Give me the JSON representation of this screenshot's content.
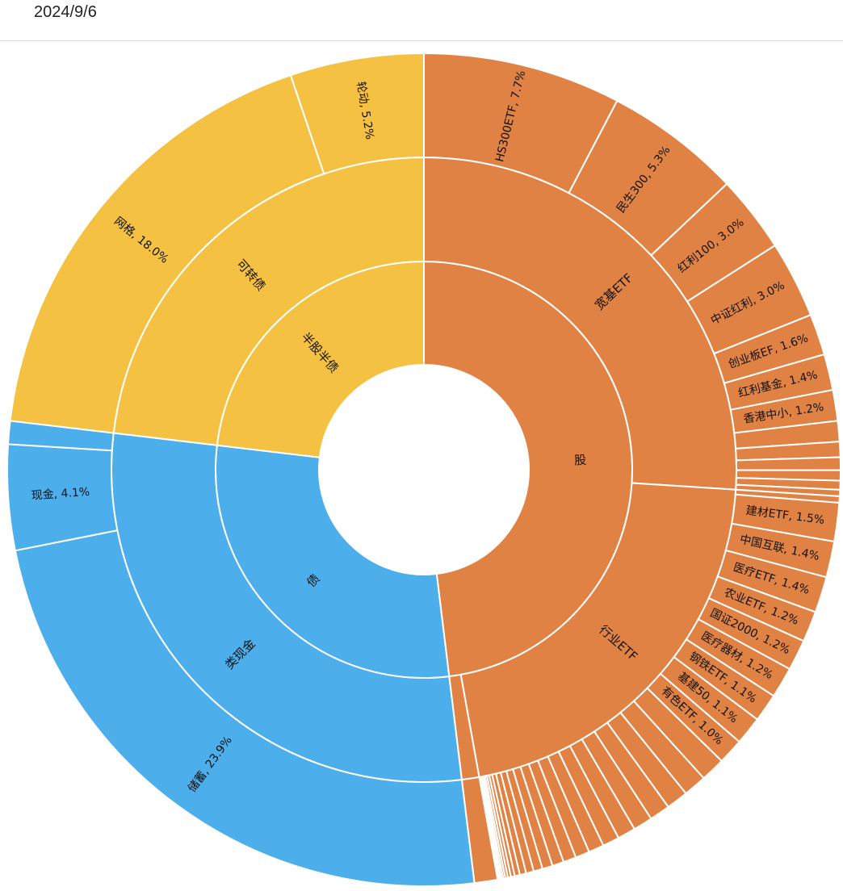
{
  "header": {
    "date": "2024/9/6"
  },
  "colors": {
    "股": "#E08244",
    "债": "#4CAEEA",
    "半股半债": "#F5C142",
    "divider": "#ffffff"
  },
  "chart_data": {
    "type": "sunburst",
    "title": "",
    "unit": "%",
    "children": [
      {
        "name": "股",
        "children": [
          {
            "name": "宽基ETF",
            "children": [
              {
                "name": "HS300ETF",
                "value": 7.7,
                "label": true
              },
              {
                "name": "民生300",
                "value": 5.3,
                "label": true
              },
              {
                "name": "红利100",
                "value": 3.0,
                "label": true
              },
              {
                "name": "中证红利",
                "value": 3.0,
                "label": true
              },
              {
                "name": "创业板EF",
                "value": 1.6,
                "label": true
              },
              {
                "name": "红利基金",
                "value": 1.4,
                "label": true
              },
              {
                "name": "香港中小",
                "value": 1.2,
                "label": true
              },
              {
                "value": 0.8
              },
              {
                "value": 0.6
              },
              {
                "value": 0.5
              },
              {
                "value": 0.4
              },
              {
                "value": 0.35
              },
              {
                "value": 0.25
              }
            ]
          },
          {
            "name": "行业ETF",
            "children": [
              {
                "value": 0.25
              },
              {
                "name": "建材ETF",
                "value": 1.5,
                "label": true
              },
              {
                "name": "中国互联",
                "value": 1.4,
                "label": true
              },
              {
                "name": "医疗ETF",
                "value": 1.4,
                "label": true
              },
              {
                "name": "农业ETF",
                "value": 1.2,
                "label": true
              },
              {
                "name": "国证2000",
                "value": 1.2,
                "label": true
              },
              {
                "name": "医疗器材",
                "value": 1.2,
                "label": true
              },
              {
                "name": "钢铁ETF",
                "value": 1.1,
                "label": true
              },
              {
                "name": "基建50",
                "value": 1.1,
                "label": true
              },
              {
                "name": "有色ETF",
                "value": 1.0,
                "label": true
              },
              {
                "value": 0.95
              },
              {
                "value": 0.9
              },
              {
                "value": 0.85
              },
              {
                "value": 0.8
              },
              {
                "value": 0.75
              },
              {
                "value": 0.7
              },
              {
                "value": 0.65
              },
              {
                "value": 0.6
              },
              {
                "value": 0.55
              },
              {
                "value": 0.5
              },
              {
                "value": 0.45
              },
              {
                "value": 0.4
              },
              {
                "value": 0.35
              },
              {
                "value": 0.3
              },
              {
                "value": 0.25
              },
              {
                "value": 0.2
              },
              {
                "value": 0.15
              },
              {
                "value": 0.12
              },
              {
                "value": 0.1
              },
              {
                "value": 0.08
              },
              {
                "value": 0.07
              },
              {
                "value": 0.06
              },
              {
                "value": 0.05
              },
              {
                "value": 0.04
              }
            ]
          },
          {
            "children": [
              {
                "value": 0.9
              }
            ]
          }
        ]
      },
      {
        "name": "债",
        "children": [
          {
            "name": "类现金",
            "children": [
              {
                "name": "储蓄",
                "value": 23.9,
                "label": true
              },
              {
                "name": "现金",
                "value": 4.1,
                "label": true
              },
              {
                "value": 0.9
              }
            ]
          }
        ]
      },
      {
        "name": "半股半债",
        "children": [
          {
            "name": "可转债",
            "children": [
              {
                "name": "网格",
                "value": 18.0,
                "label": true
              },
              {
                "name": "轮动",
                "value": 5.2,
                "label": true
              }
            ]
          }
        ]
      }
    ]
  }
}
